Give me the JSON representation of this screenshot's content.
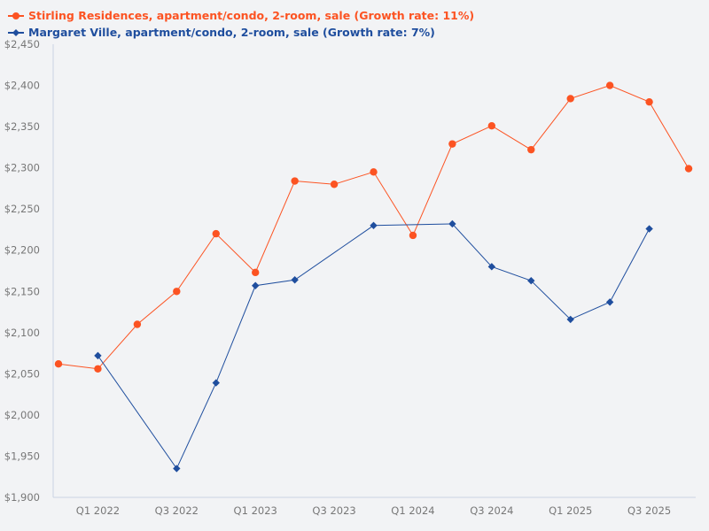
{
  "chart_data": {
    "type": "line",
    "title": "",
    "xlabel": "",
    "ylabel": "",
    "ylim": [
      1900,
      2450
    ],
    "yticks": [
      "$1,900",
      "$1,950",
      "$2,000",
      "$2,050",
      "$2,100",
      "$2,150",
      "$2,200",
      "$2,250",
      "$2,300",
      "$2,350",
      "$2,400",
      "$2,450"
    ],
    "ytick_values": [
      1900,
      1950,
      2000,
      2050,
      2100,
      2150,
      2200,
      2250,
      2300,
      2350,
      2400,
      2450
    ],
    "x": [
      "Q4 2021",
      "Q1 2022",
      "Q2 2022",
      "Q3 2022",
      "Q4 2022",
      "Q1 2023",
      "Q2 2023",
      "Q3 2023",
      "Q4 2023",
      "Q1 2024",
      "Q2 2024",
      "Q3 2024",
      "Q4 2024",
      "Q1 2025",
      "Q2 2025",
      "Q3 2025",
      "Q4 2025"
    ],
    "xtick_labels": [
      "Q1 2022",
      "Q3 2022",
      "Q1 2023",
      "Q3 2023",
      "Q1 2024",
      "Q3 2024",
      "Q1 2025",
      "Q3 2025"
    ],
    "grid": false,
    "legend_position": "top-left",
    "series": [
      {
        "name": "Stirling Residences, apartment/condo, 2-room, sale (Growth rate: 11%)",
        "color": "#fc5322",
        "marker": "circle",
        "values": [
          2062,
          2056,
          2110,
          2150,
          2220,
          2173,
          2284,
          2280,
          2295,
          2218,
          2329,
          2351,
          2322,
          2384,
          2400,
          2380,
          2299
        ]
      },
      {
        "name": "Margaret Ville, apartment/condo, 2-room, sale (Growth rate: 7%)",
        "color": "#1f4e9e",
        "marker": "diamond",
        "values": [
          null,
          2072,
          null,
          1935,
          2039,
          2157,
          2164,
          null,
          2230,
          null,
          2232,
          2180,
          2163,
          2116,
          2137,
          2226,
          null
        ]
      }
    ]
  }
}
